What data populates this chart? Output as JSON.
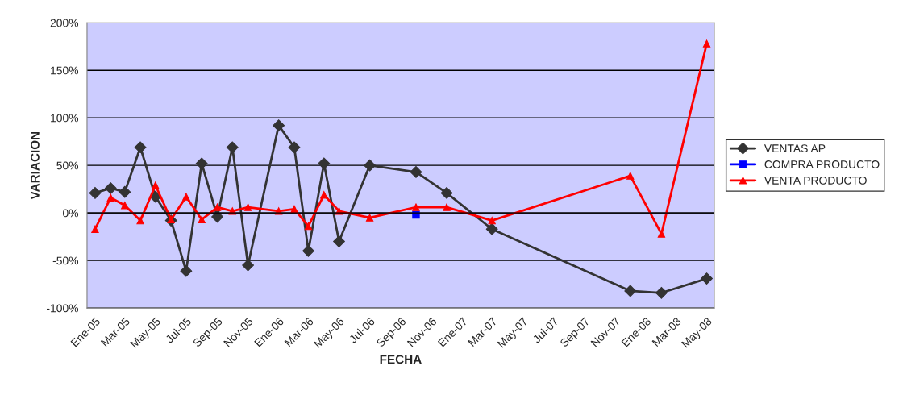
{
  "chart_data": {
    "type": "line",
    "xlabel": "FECHA",
    "ylabel": "VARIACION",
    "xlim": [
      "2004-12-16",
      "2008-05-16"
    ],
    "xticks": [
      {
        "value": "2005-01",
        "label": "Ene-05"
      },
      {
        "value": "2005-03",
        "label": "Mar-05"
      },
      {
        "value": "2005-05",
        "label": "May-05"
      },
      {
        "value": "2005-07",
        "label": "Jul-05"
      },
      {
        "value": "2005-09",
        "label": "Sep-05"
      },
      {
        "value": "2005-11",
        "label": "Nov-05"
      },
      {
        "value": "2006-01",
        "label": "Ene-06"
      },
      {
        "value": "2006-03",
        "label": "Mar-06"
      },
      {
        "value": "2006-05",
        "label": "May-06"
      },
      {
        "value": "2006-07",
        "label": "Jul-06"
      },
      {
        "value": "2006-09",
        "label": "Sep-06"
      },
      {
        "value": "2006-11",
        "label": "Nov-06"
      },
      {
        "value": "2007-01",
        "label": "Ene-07"
      },
      {
        "value": "2007-03",
        "label": "Mar-07"
      },
      {
        "value": "2007-05",
        "label": "May-07"
      },
      {
        "value": "2007-07",
        "label": "Jul-07"
      },
      {
        "value": "2007-09",
        "label": "Sep-07"
      },
      {
        "value": "2007-11",
        "label": "Nov-07"
      },
      {
        "value": "2008-01",
        "label": "Ene-08"
      },
      {
        "value": "2008-03",
        "label": "Mar-08"
      },
      {
        "value": "2008-05",
        "label": "May-08"
      }
    ],
    "ylim": [
      -100,
      200
    ],
    "yticks": [
      {
        "value": -100,
        "label": "-100%"
      },
      {
        "value": -50,
        "label": "-50%"
      },
      {
        "value": 0,
        "label": "0%"
      },
      {
        "value": 50,
        "label": "50%"
      },
      {
        "value": 100,
        "label": "100%"
      },
      {
        "value": 150,
        "label": "150%"
      },
      {
        "value": 200,
        "label": "200%"
      }
    ],
    "grid": "y",
    "legend": "right",
    "series": [
      {
        "name": "VENTAS AP",
        "color": "#333333",
        "marker": "diamond",
        "x": [
          "2005-01",
          "2005-02",
          "2005-03",
          "2005-04",
          "2005-05",
          "2005-06",
          "2005-07",
          "2005-08",
          "2005-09",
          "2005-10",
          "2005-11",
          "2006-01",
          "2006-02",
          "2006-03",
          "2006-04",
          "2006-05",
          "2006-07",
          "2006-10",
          "2006-12",
          "2007-03",
          "2007-12",
          "2008-02",
          "2008-05"
        ],
        "values": [
          21,
          26,
          22,
          69,
          17,
          -8,
          -61,
          52,
          -4,
          69,
          -55,
          92,
          69,
          -40,
          52,
          -30,
          50,
          43,
          21,
          -17,
          -82,
          -84,
          -69
        ]
      },
      {
        "name": "COMPRA PRODUCTO",
        "color": "#0000ff",
        "marker": "square",
        "x": [
          "2006-10"
        ],
        "values": [
          -2
        ]
      },
      {
        "name": "VENTA PRODUCTO",
        "color": "#ff0000",
        "marker": "triangle",
        "x": [
          "2005-01",
          "2005-02",
          "2005-03",
          "2005-04",
          "2005-05",
          "2005-06",
          "2005-07",
          "2005-08",
          "2005-09",
          "2005-10",
          "2005-11",
          "2006-01",
          "2006-02",
          "2006-03",
          "2006-04",
          "2006-05",
          "2006-07",
          "2006-10",
          "2006-12",
          "2007-03",
          "2007-12",
          "2008-02",
          "2008-05"
        ],
        "values": [
          -17,
          16,
          8,
          -8,
          29,
          -7,
          17,
          -7,
          6,
          2,
          6,
          2,
          4,
          -14,
          19,
          2,
          -5,
          6,
          6,
          -8,
          39,
          -22,
          178
        ]
      }
    ]
  }
}
